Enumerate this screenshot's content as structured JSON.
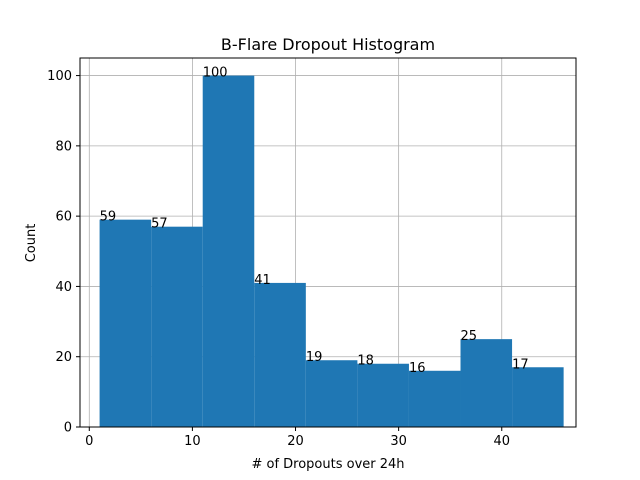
{
  "chart_data": {
    "type": "bar",
    "title": "B-Flare Dropout Histogram",
    "xlabel": "# of Dropouts over 24h",
    "ylabel": "Count",
    "bin_edges": [
      1,
      6,
      11,
      16,
      21,
      26,
      31,
      36,
      41,
      46
    ],
    "values": [
      59,
      57,
      100,
      41,
      19,
      18,
      16,
      25,
      17
    ],
    "data_labels": [
      "59",
      "57",
      "100",
      "41",
      "19",
      "18",
      "16",
      "25",
      "17"
    ],
    "xlim": [
      -0.9,
      47.2
    ],
    "ylim": [
      0,
      105
    ],
    "xticks": [
      0,
      10,
      20,
      30,
      40
    ],
    "xtick_labels": [
      "0",
      "10",
      "20",
      "30",
      "40"
    ],
    "yticks": [
      0,
      20,
      40,
      60,
      80,
      100
    ],
    "ytick_labels": [
      "0",
      "20",
      "40",
      "60",
      "80",
      "100"
    ],
    "grid": true,
    "bar_color": "#1f77b4"
  }
}
